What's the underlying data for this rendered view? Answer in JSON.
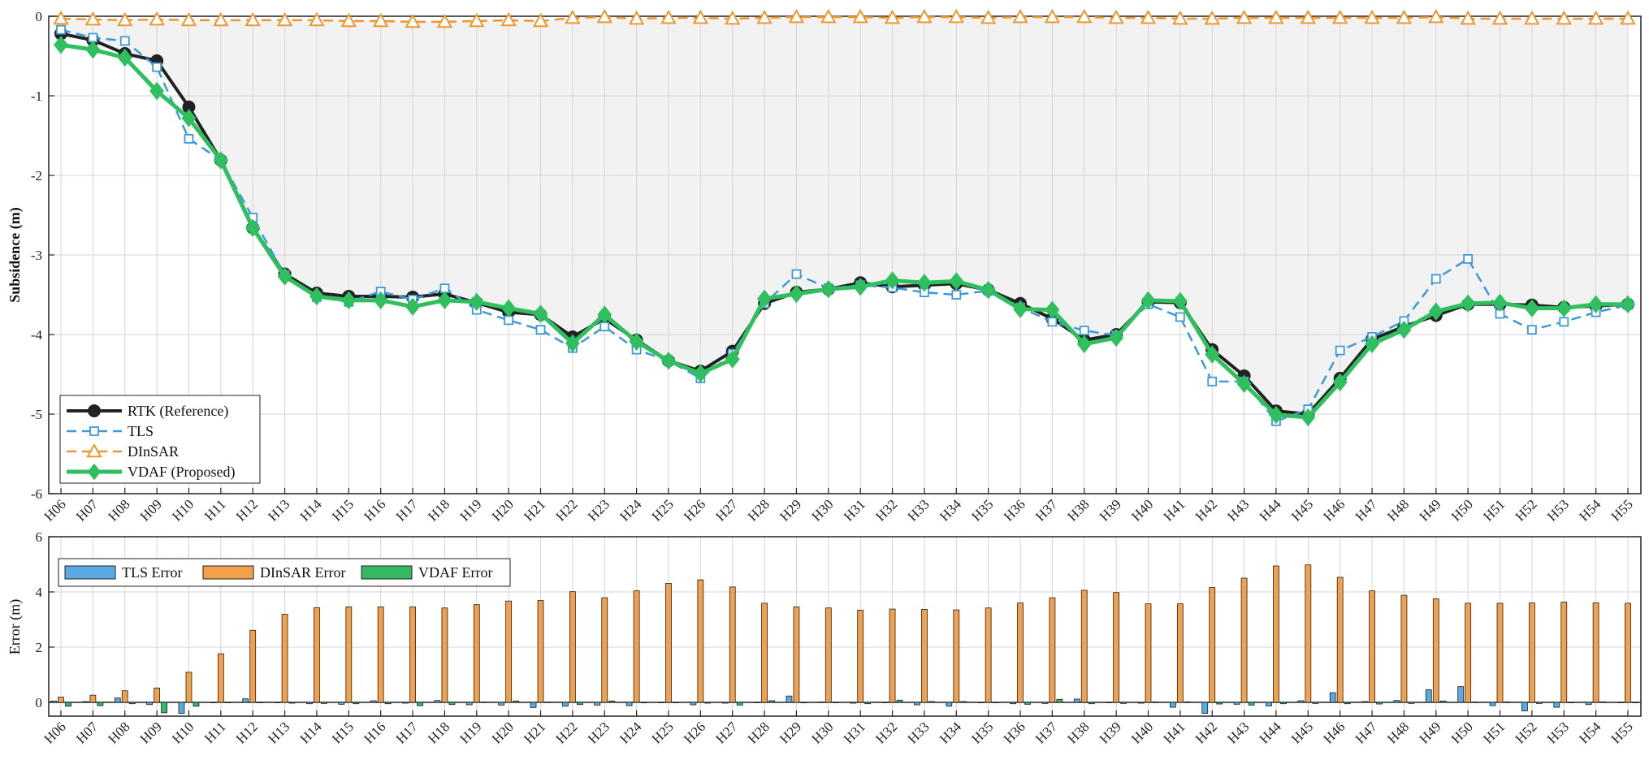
{
  "chart_data": [
    {
      "type": "line",
      "ylabel": "Subsidence (m)",
      "ylim": [
        -6,
        0
      ],
      "yticks": [
        0,
        -1,
        -2,
        -3,
        -4,
        -5,
        -6
      ],
      "grid": true,
      "legend_position": "bottom-left",
      "categories": [
        "H06",
        "H07",
        "H08",
        "H09",
        "H10",
        "H11",
        "H12",
        "H13",
        "H14",
        "H15",
        "H16",
        "H17",
        "H18",
        "H19",
        "H20",
        "H21",
        "H22",
        "H23",
        "H24",
        "H25",
        "H26",
        "H27",
        "H28",
        "H29",
        "H30",
        "H31",
        "H32",
        "H33",
        "H34",
        "H35",
        "H36",
        "H37",
        "H38",
        "H39",
        "H40",
        "H41",
        "H42",
        "H43",
        "H44",
        "H45",
        "H46",
        "H47",
        "H48",
        "H49",
        "H50",
        "H51",
        "H52",
        "H53",
        "H54",
        "H55"
      ],
      "series": [
        {
          "name": "RTK (Reference)",
          "color": "#222222",
          "marker": "circle",
          "dash": "solid",
          "values": [
            -0.22,
            -0.3,
            -0.47,
            -0.56,
            -1.14,
            -1.81,
            -2.66,
            -3.24,
            -3.48,
            -3.52,
            -3.52,
            -3.53,
            -3.49,
            -3.6,
            -3.72,
            -3.75,
            -4.03,
            -3.8,
            -4.07,
            -4.33,
            -4.46,
            -4.21,
            -3.61,
            -3.47,
            -3.43,
            -3.35,
            -3.4,
            -3.38,
            -3.36,
            -3.44,
            -3.61,
            -3.8,
            -4.07,
            -4.0,
            -3.59,
            -3.6,
            -4.19,
            -4.52,
            -4.96,
            -5.0,
            -4.55,
            -4.06,
            -3.9,
            -3.76,
            -3.62,
            -3.62,
            -3.63,
            -3.66,
            -3.64,
            -3.62
          ]
        },
        {
          "name": "TLS",
          "color": "#3c9ad8",
          "marker": "square",
          "dash": "dashed",
          "values": [
            -0.17,
            -0.27,
            -0.31,
            -0.64,
            -1.54,
            -1.81,
            -2.53,
            -3.25,
            -3.53,
            -3.59,
            -3.46,
            -3.56,
            -3.42,
            -3.69,
            -3.82,
            -3.94,
            -4.17,
            -3.9,
            -4.19,
            -4.33,
            -4.55,
            -4.24,
            -3.61,
            -3.24,
            -3.42,
            -3.38,
            -3.41,
            -3.47,
            -3.5,
            -3.45,
            -3.66,
            -3.84,
            -3.95,
            -4.01,
            -3.62,
            -3.78,
            -4.59,
            -4.59,
            -5.09,
            -4.94,
            -4.2,
            -4.03,
            -3.83,
            -3.3,
            -3.05,
            -3.74,
            -3.94,
            -3.84,
            -3.72,
            -3.63
          ]
        },
        {
          "name": "DInSAR",
          "color": "#f0962d",
          "marker": "triangle",
          "dash": "dashed",
          "values": [
            -0.03,
            -0.04,
            -0.05,
            -0.04,
            -0.05,
            -0.05,
            -0.05,
            -0.05,
            -0.05,
            -0.06,
            -0.06,
            -0.07,
            -0.07,
            -0.06,
            -0.05,
            -0.06,
            -0.02,
            -0.01,
            -0.03,
            -0.02,
            -0.02,
            -0.03,
            -0.02,
            -0.01,
            -0.01,
            -0.01,
            -0.02,
            -0.01,
            -0.01,
            -0.02,
            -0.01,
            -0.01,
            -0.01,
            -0.02,
            -0.02,
            -0.03,
            -0.03,
            -0.02,
            -0.02,
            -0.02,
            -0.02,
            -0.02,
            -0.02,
            -0.01,
            -0.03,
            -0.03,
            -0.03,
            -0.03,
            -0.03,
            -0.03
          ]
        },
        {
          "name": "VDAF (Proposed)",
          "color": "#2fbf5f",
          "marker": "diamond",
          "dash": "solid",
          "values": [
            -0.36,
            -0.42,
            -0.52,
            -0.94,
            -1.28,
            -1.81,
            -2.66,
            -3.27,
            -3.52,
            -3.57,
            -3.57,
            -3.65,
            -3.57,
            -3.59,
            -3.67,
            -3.74,
            -4.11,
            -3.75,
            -4.09,
            -4.33,
            -4.49,
            -4.31,
            -3.55,
            -3.49,
            -3.43,
            -3.4,
            -3.32,
            -3.35,
            -3.33,
            -3.44,
            -3.68,
            -3.69,
            -4.12,
            -4.04,
            -3.57,
            -3.58,
            -4.25,
            -4.62,
            -5.01,
            -5.04,
            -4.6,
            -4.12,
            -3.94,
            -3.71,
            -3.61,
            -3.6,
            -3.67,
            -3.67,
            -3.62,
            -3.62
          ]
        }
      ]
    },
    {
      "type": "bar",
      "ylabel": "Error (m)",
      "ylim": [
        -0.5,
        6
      ],
      "yticks": [
        0,
        2,
        4,
        6
      ],
      "grid": true,
      "legend_position": "top-left",
      "categories": [
        "H06",
        "H07",
        "H08",
        "H09",
        "H10",
        "H11",
        "H12",
        "H13",
        "H14",
        "H15",
        "H16",
        "H17",
        "H18",
        "H19",
        "H20",
        "H21",
        "H22",
        "H23",
        "H24",
        "H25",
        "H26",
        "H27",
        "H28",
        "H29",
        "H30",
        "H31",
        "H32",
        "H33",
        "H34",
        "H35",
        "H36",
        "H37",
        "H38",
        "H39",
        "H40",
        "H41",
        "H42",
        "H43",
        "H44",
        "H45",
        "H46",
        "H47",
        "H48",
        "H49",
        "H50",
        "H51",
        "H52",
        "H53",
        "H54",
        "H55"
      ],
      "series": [
        {
          "name": "TLS Error",
          "color": "#5aa9e0",
          "values": [
            0.05,
            0.03,
            0.16,
            -0.08,
            -0.4,
            0.0,
            0.13,
            -0.01,
            -0.05,
            -0.07,
            0.06,
            -0.03,
            0.07,
            -0.09,
            -0.1,
            -0.19,
            -0.14,
            -0.1,
            -0.12,
            0.0,
            -0.09,
            -0.03,
            0.0,
            0.23,
            0.01,
            -0.03,
            -0.01,
            -0.09,
            -0.14,
            -0.01,
            -0.05,
            -0.04,
            0.12,
            -0.01,
            -0.03,
            -0.18,
            -0.4,
            -0.07,
            -0.13,
            0.06,
            0.35,
            0.03,
            0.07,
            0.46,
            0.57,
            -0.12,
            -0.31,
            -0.18,
            -0.08,
            -0.01
          ]
        },
        {
          "name": "DInSAR Error",
          "color": "#f2a04a",
          "values": [
            0.19,
            0.26,
            0.42,
            0.52,
            1.09,
            1.76,
            2.61,
            3.19,
            3.43,
            3.46,
            3.46,
            3.46,
            3.42,
            3.54,
            3.67,
            3.69,
            4.01,
            3.79,
            4.04,
            4.31,
            4.44,
            4.18,
            3.59,
            3.46,
            3.42,
            3.34,
            3.38,
            3.37,
            3.35,
            3.42,
            3.6,
            3.79,
            4.06,
            3.98,
            3.57,
            3.57,
            4.16,
            4.5,
            4.94,
            4.98,
            4.53,
            4.04,
            3.88,
            3.75,
            3.59,
            3.59,
            3.6,
            3.63,
            3.61,
            3.59
          ]
        },
        {
          "name": "VDAF Error",
          "color": "#34b864",
          "values": [
            -0.14,
            -0.12,
            -0.05,
            -0.38,
            -0.14,
            0.0,
            0.0,
            -0.03,
            -0.04,
            -0.05,
            -0.05,
            -0.12,
            -0.08,
            0.01,
            0.05,
            0.01,
            -0.08,
            0.05,
            -0.02,
            0.0,
            -0.03,
            -0.1,
            0.06,
            -0.02,
            0.0,
            -0.05,
            0.08,
            0.03,
            0.03,
            0.0,
            -0.07,
            0.11,
            -0.05,
            -0.04,
            0.02,
            0.02,
            -0.06,
            -0.1,
            -0.05,
            -0.04,
            -0.05,
            -0.06,
            -0.04,
            0.05,
            0.01,
            0.02,
            -0.04,
            -0.01,
            0.02,
            0.0
          ]
        }
      ]
    }
  ]
}
